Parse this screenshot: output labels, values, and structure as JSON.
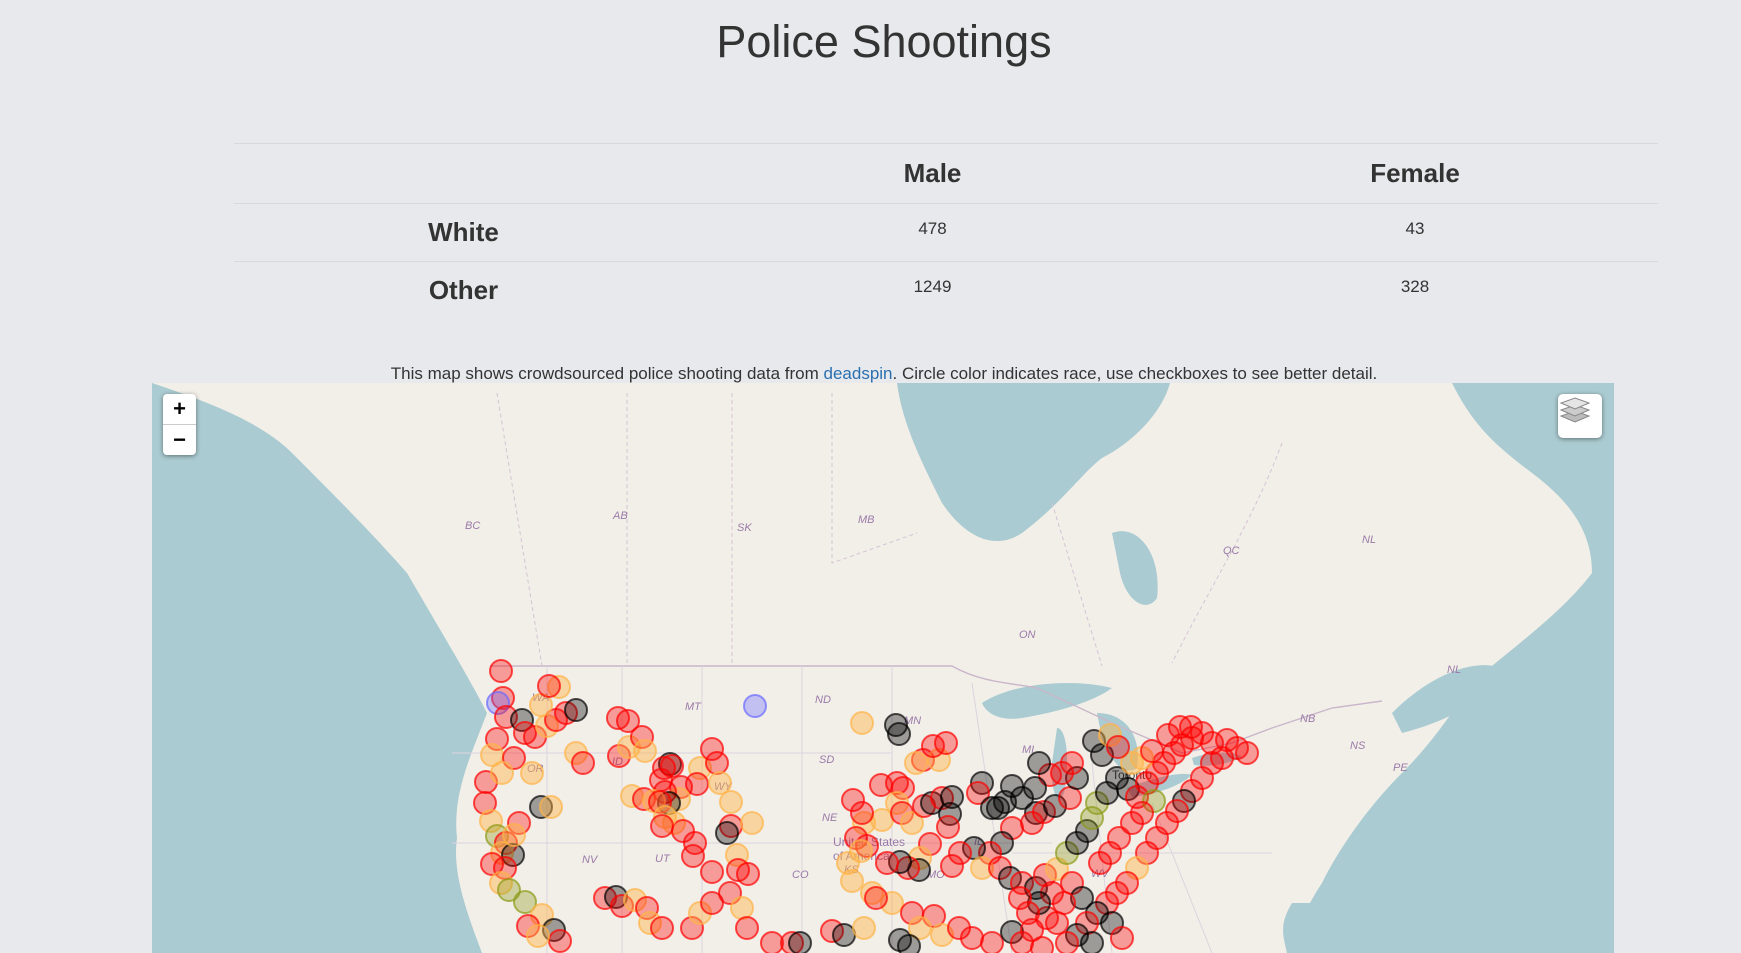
{
  "page": {
    "title": "Police Shootings"
  },
  "table": {
    "col_headers": [
      "",
      "Male",
      "Female"
    ],
    "rows": [
      {
        "label": "White",
        "male": "478",
        "female": "43"
      },
      {
        "label": "Other",
        "male": "1249",
        "female": "328"
      }
    ]
  },
  "intro": {
    "before": "This map shows crowdsourced police shooting data from ",
    "link": "deadspin",
    "after": ". Circle color indicates race, use checkboxes to see better detail."
  },
  "map": {
    "zoom_in": "+",
    "zoom_out": "−",
    "layers_icon": "layers-icon",
    "region_labels": [
      "BC",
      "AB",
      "SK",
      "MB",
      "QC",
      "NL",
      "ON",
      "NL",
      "NB",
      "NS",
      "MT",
      "ND",
      "MN",
      "SD",
      "WY",
      "NE",
      "NV",
      "UT",
      "OR",
      "ID",
      "WA",
      "IL",
      "MO",
      "WV",
      "MI",
      "KS",
      "CO",
      "United States",
      "of America",
      "Toronto",
      "PE"
    ],
    "colors": {
      "water": "#aacbd1",
      "land": "#f2efe9",
      "red": "#ff0000",
      "orange": "#ffb347",
      "black": "#000000",
      "olive": "#8b9a16",
      "blue": "#6a6aff"
    }
  }
}
